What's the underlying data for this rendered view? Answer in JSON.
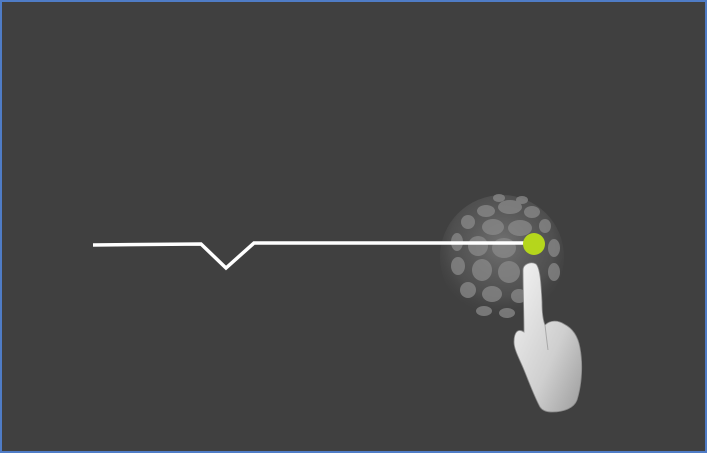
{
  "screen": {
    "background_color": "#404040",
    "border_color": "#4f7cc6"
  },
  "gesture": {
    "trail_color": "#ffffff",
    "touch_point_color": "#b5d61c",
    "hand_icon": "pointing-hand-icon",
    "sphere_icon": "dotted-sphere-icon",
    "hand_color": "#e0e0e0"
  }
}
